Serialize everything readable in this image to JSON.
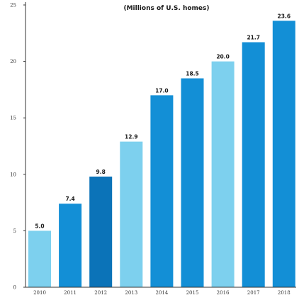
{
  "chart_data": {
    "type": "bar",
    "title": "(Millions of U.S. homes)",
    "xlabel": "",
    "ylabel": "",
    "categories": [
      "2010",
      "2011",
      "2012",
      "2013",
      "2014",
      "2015",
      "2016",
      "2017",
      "2018"
    ],
    "values": [
      5.0,
      7.4,
      9.8,
      12.9,
      17.0,
      18.5,
      20.0,
      21.7,
      23.6
    ],
    "data_labels": [
      "5.0",
      "7.4",
      "9.8",
      "12.9",
      "17.0",
      "18.5",
      "20.0",
      "21.7",
      "23.6"
    ],
    "ylim": [
      0,
      25
    ],
    "yticks": [
      0,
      5,
      10,
      15,
      20,
      25
    ],
    "ytick_labels": [
      "0",
      "5",
      "10",
      "15",
      "20",
      "25"
    ],
    "grid": false,
    "legend": "none",
    "colors": {
      "light": "#7dd0ee",
      "medium": "#138fd6",
      "dark": "#0b73b8",
      "axis": "#333333"
    },
    "bar_shades": [
      "light",
      "medium",
      "dark",
      "light",
      "medium",
      "medium",
      "light",
      "medium",
      "medium"
    ]
  }
}
